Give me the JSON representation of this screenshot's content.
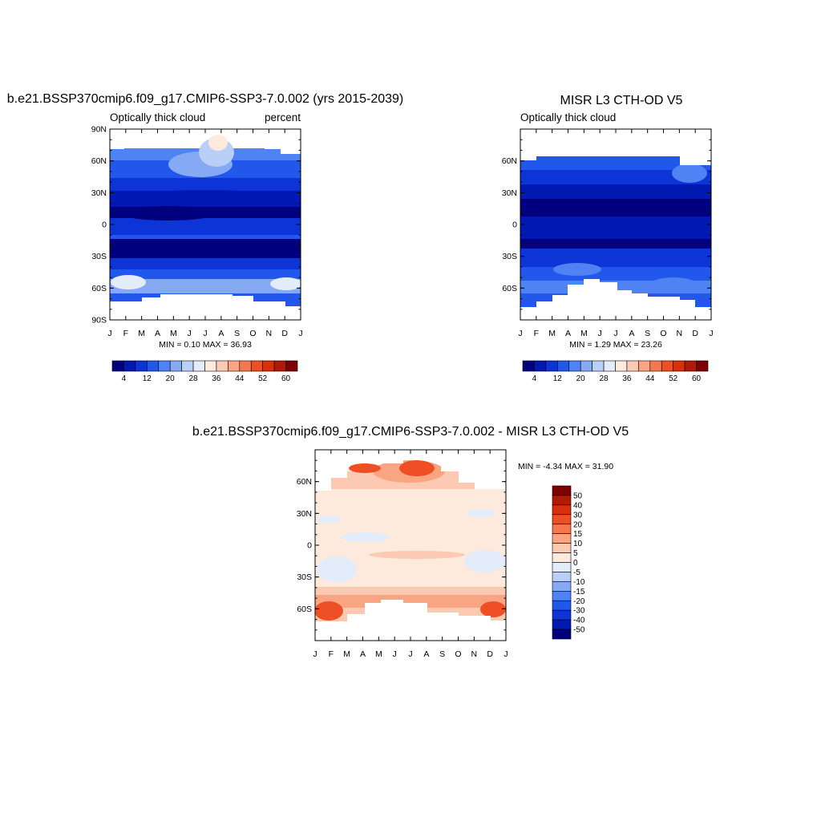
{
  "panels": [
    {
      "title": "b.e21.BSSP370cmip6.f09_g17.CMIP6-SSP3-7.0.002 (yrs 2015-2039)",
      "left_label": "Optically thick cloud",
      "right_label": "percent",
      "minmax": "MIN =   0.10 MAX =  36.93"
    },
    {
      "title": "MISR L3 CTH-OD V5",
      "left_label": "Optically thick cloud",
      "right_label": "",
      "minmax": "MIN =   1.29 MAX =  23.26"
    },
    {
      "title": "b.e21.BSSP370cmip6.f09_g17.CMIP6-SSP3-7.0.002 - MISR L3 CTH-OD V5",
      "left_label": "",
      "right_label": "",
      "minmax": "MIN =  -4.34 MAX =  31.90"
    }
  ],
  "chart_data": [
    {
      "type": "heatmap",
      "title": "b.e21.BSSP370cmip6.f09_g17.CMIP6-SSP3-7.0.002 (yrs 2015-2039)",
      "x_tick_labels": [
        "J",
        "F",
        "M",
        "A",
        "M",
        "J",
        "J",
        "A",
        "S",
        "O",
        "N",
        "D",
        "J"
      ],
      "y_tick_labels": [
        "90N",
        "60N",
        "30N",
        "0",
        "30S",
        "60S",
        "90S"
      ],
      "y_tick_values": [
        90,
        60,
        30,
        0,
        -30,
        -60,
        -90
      ],
      "ylim": [
        -90,
        90
      ],
      "colorbar": {
        "orientation": "horizontal",
        "levels": [
          4,
          8,
          12,
          16,
          20,
          24,
          28,
          32,
          36,
          40,
          44,
          48,
          52,
          56,
          60
        ],
        "labels": [
          "4",
          "12",
          "20",
          "28",
          "36",
          "44",
          "52",
          "60"
        ],
        "colors": [
          "#00007f",
          "#0019b3",
          "#0d34d6",
          "#2257ec",
          "#4f82f2",
          "#86a9f4",
          "#b9cff6",
          "#e2ecfb",
          "#feeadc",
          "#fccab2",
          "#f9a583",
          "#f57750",
          "#ef4f24",
          "#d82f0d",
          "#b31a05",
          "#7f0000"
        ]
      },
      "min": 0.1,
      "max": 36.93
    },
    {
      "type": "heatmap",
      "title": "MISR L3 CTH-OD V5",
      "x_tick_labels": [
        "J",
        "F",
        "M",
        "A",
        "M",
        "J",
        "J",
        "A",
        "S",
        "O",
        "N",
        "D",
        "J"
      ],
      "y_tick_labels": [
        "60N",
        "30N",
        "0",
        "30S",
        "60S"
      ],
      "y_tick_values": [
        60,
        30,
        0,
        -30,
        -60
      ],
      "ylim": [
        -90,
        90
      ],
      "colorbar": {
        "orientation": "horizontal",
        "levels": [
          4,
          8,
          12,
          16,
          20,
          24,
          28,
          32,
          36,
          40,
          44,
          48,
          52,
          56,
          60
        ],
        "labels": [
          "4",
          "12",
          "20",
          "28",
          "36",
          "44",
          "52",
          "60"
        ],
        "colors": [
          "#00007f",
          "#0019b3",
          "#0d34d6",
          "#2257ec",
          "#4f82f2",
          "#86a9f4",
          "#b9cff6",
          "#e2ecfb",
          "#feeadc",
          "#fccab2",
          "#f9a583",
          "#f57750",
          "#ef4f24",
          "#d82f0d",
          "#b31a05",
          "#7f0000"
        ]
      },
      "min": 1.29,
      "max": 23.26
    },
    {
      "type": "heatmap",
      "title": "b.e21.BSSP370cmip6.f09_g17.CMIP6-SSP3-7.0.002 - MISR L3 CTH-OD V5",
      "x_tick_labels": [
        "J",
        "F",
        "M",
        "A",
        "M",
        "J",
        "J",
        "A",
        "S",
        "O",
        "N",
        "D",
        "J"
      ],
      "y_tick_labels": [
        "60N",
        "30N",
        "0",
        "30S",
        "60S"
      ],
      "y_tick_values": [
        60,
        30,
        0,
        -30,
        -60
      ],
      "ylim": [
        -90,
        90
      ],
      "colorbar": {
        "orientation": "vertical",
        "levels": [
          -50,
          -40,
          -30,
          -20,
          -15,
          -10,
          -5,
          0,
          5,
          10,
          15,
          20,
          30,
          40,
          50
        ],
        "labels": [
          "50",
          "40",
          "30",
          "20",
          "15",
          "10",
          "5",
          "0",
          "-5",
          "-10",
          "-15",
          "-20",
          "-30",
          "-40",
          "-50"
        ],
        "colors": [
          "#00007f",
          "#0019b3",
          "#0d34d6",
          "#2257ec",
          "#4f82f2",
          "#86a9f4",
          "#b9cff6",
          "#e2ecfb",
          "#feeadc",
          "#fccab2",
          "#f9a583",
          "#f57750",
          "#ef4f24",
          "#d82f0d",
          "#b31a05",
          "#7f0000"
        ]
      },
      "min": -4.34,
      "max": 31.9
    }
  ]
}
